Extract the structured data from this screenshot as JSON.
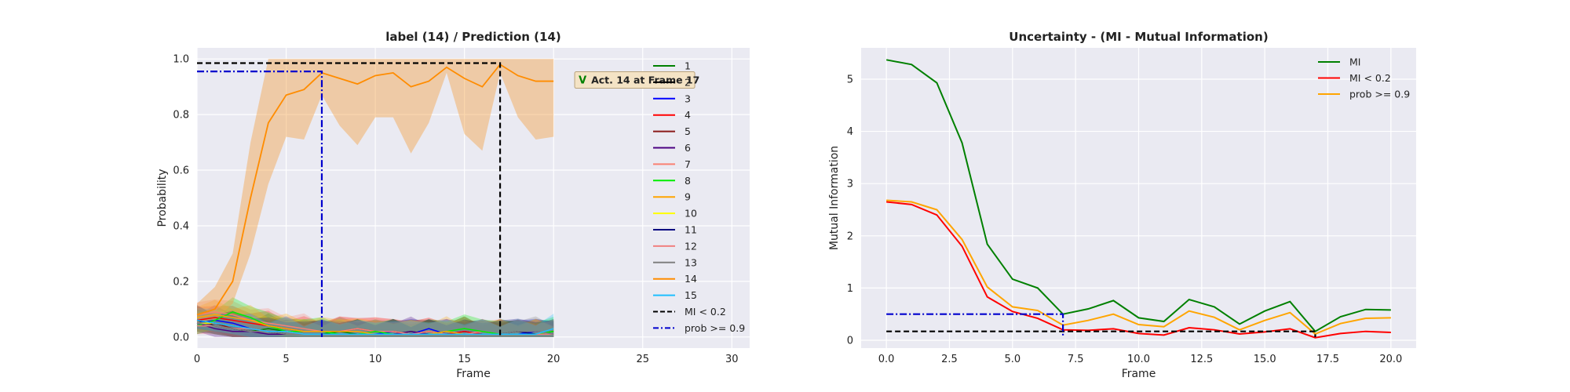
{
  "chart_data": [
    {
      "type": "line",
      "title": "label (14) / Prediction (14)",
      "xlabel": "Frame",
      "ylabel": "Probability",
      "xlim": [
        0,
        31
      ],
      "ylim": [
        -0.04,
        1.04
      ],
      "xticks": [
        0,
        5,
        10,
        15,
        20,
        25,
        30
      ],
      "yticks": [
        0.0,
        0.2,
        0.4,
        0.6,
        0.8,
        1.0
      ],
      "grid": true,
      "legend_position": "right",
      "annotation": {
        "symbol": "V",
        "text": "Act. 14 at Frame 17",
        "x": 17,
        "y": 0.92
      },
      "series": [
        {
          "name": "1",
          "color": "#008000",
          "values": [
            0.05,
            0.04,
            0.03,
            0.02,
            0.03,
            0.02,
            0.01,
            0.01,
            0.02,
            0.01,
            0.01,
            0.01,
            0.02,
            0.01,
            0.01,
            0.02,
            0.01,
            0.01,
            0.02,
            0.01,
            0.02
          ]
        },
        {
          "name": "2",
          "color": "#000000",
          "values": [
            0.06,
            0.04,
            0.03,
            0.02,
            0.02,
            0.01,
            0.01,
            0.01,
            0.01,
            0.01,
            0.01,
            0.01,
            0.01,
            0.01,
            0.01,
            0.01,
            0.01,
            0.01,
            0.01,
            0.01,
            0.01
          ]
        },
        {
          "name": "3",
          "color": "#0000ff",
          "values": [
            0.05,
            0.06,
            0.05,
            0.03,
            0.02,
            0.02,
            0.01,
            0.01,
            0.01,
            0.01,
            0.01,
            0.02,
            0.01,
            0.03,
            0.01,
            0.02,
            0.01,
            0.01,
            0.01,
            0.02,
            0.01
          ]
        },
        {
          "name": "4",
          "color": "#ff0000",
          "values": [
            0.06,
            0.07,
            0.06,
            0.05,
            0.04,
            0.03,
            0.02,
            0.02,
            0.02,
            0.03,
            0.02,
            0.02,
            0.01,
            0.02,
            0.01,
            0.02,
            0.01,
            0.01,
            0.01,
            0.01,
            0.01
          ]
        },
        {
          "name": "5",
          "color": "#8b1a1a",
          "values": [
            0.04,
            0.05,
            0.03,
            0.03,
            0.02,
            0.02,
            0.01,
            0.01,
            0.01,
            0.01,
            0.01,
            0.01,
            0.01,
            0.01,
            0.01,
            0.01,
            0.01,
            0.01,
            0.01,
            0.01,
            0.01
          ]
        },
        {
          "name": "6",
          "color": "#4b0082",
          "values": [
            0.05,
            0.03,
            0.02,
            0.02,
            0.01,
            0.01,
            0.01,
            0.01,
            0.01,
            0.01,
            0.01,
            0.01,
            0.02,
            0.01,
            0.01,
            0.01,
            0.01,
            0.01,
            0.01,
            0.01,
            0.01
          ]
        },
        {
          "name": "7",
          "color": "#fa8072",
          "values": [
            0.08,
            0.09,
            0.08,
            0.06,
            0.05,
            0.04,
            0.03,
            0.02,
            0.02,
            0.03,
            0.02,
            0.02,
            0.01,
            0.02,
            0.01,
            0.01,
            0.02,
            0.01,
            0.01,
            0.01,
            0.01
          ]
        },
        {
          "name": "8",
          "color": "#00ee00",
          "values": [
            0.04,
            0.06,
            0.09,
            0.07,
            0.04,
            0.02,
            0.02,
            0.02,
            0.01,
            0.01,
            0.02,
            0.01,
            0.01,
            0.01,
            0.02,
            0.03,
            0.02,
            0.01,
            0.01,
            0.01,
            0.02
          ]
        },
        {
          "name": "9",
          "color": "#ffa500",
          "values": [
            0.07,
            0.08,
            0.07,
            0.06,
            0.04,
            0.03,
            0.02,
            0.02,
            0.02,
            0.02,
            0.01,
            0.01,
            0.01,
            0.01,
            0.02,
            0.01,
            0.01,
            0.01,
            0.01,
            0.01,
            0.01
          ]
        },
        {
          "name": "10",
          "color": "#ffff00",
          "values": [
            0.05,
            0.05,
            0.04,
            0.03,
            0.02,
            0.02,
            0.01,
            0.01,
            0.01,
            0.01,
            0.01,
            0.01,
            0.01,
            0.01,
            0.01,
            0.01,
            0.01,
            0.01,
            0.01,
            0.01,
            0.01
          ]
        },
        {
          "name": "11",
          "color": "#000080",
          "values": [
            0.06,
            0.05,
            0.04,
            0.03,
            0.02,
            0.01,
            0.01,
            0.01,
            0.01,
            0.01,
            0.01,
            0.01,
            0.01,
            0.01,
            0.01,
            0.01,
            0.01,
            0.01,
            0.02,
            0.01,
            0.01
          ]
        },
        {
          "name": "12",
          "color": "#f08080",
          "values": [
            0.04,
            0.04,
            0.03,
            0.03,
            0.02,
            0.02,
            0.01,
            0.01,
            0.01,
            0.01,
            0.01,
            0.01,
            0.01,
            0.01,
            0.01,
            0.01,
            0.01,
            0.01,
            0.01,
            0.01,
            0.01
          ]
        },
        {
          "name": "13",
          "color": "#808080",
          "values": [
            0.05,
            0.04,
            0.03,
            0.02,
            0.02,
            0.01,
            0.01,
            0.01,
            0.01,
            0.01,
            0.01,
            0.01,
            0.01,
            0.01,
            0.01,
            0.01,
            0.01,
            0.01,
            0.02,
            0.02,
            0.01
          ]
        },
        {
          "name": "14",
          "color": "#ff8c00",
          "values": [
            0.08,
            0.1,
            0.2,
            0.5,
            0.77,
            0.87,
            0.89,
            0.95,
            0.93,
            0.91,
            0.94,
            0.95,
            0.9,
            0.92,
            0.97,
            0.93,
            0.9,
            0.98,
            0.94,
            0.92,
            0.92
          ]
        },
        {
          "name": "15",
          "color": "#1ebfff",
          "values": [
            0.06,
            0.05,
            0.04,
            0.03,
            0.02,
            0.02,
            0.01,
            0.01,
            0.01,
            0.01,
            0.01,
            0.01,
            0.01,
            0.01,
            0.01,
            0.01,
            0.01,
            0.01,
            0.01,
            0.01,
            0.03
          ]
        }
      ],
      "band_14": {
        "upper": [
          0.12,
          0.18,
          0.3,
          0.7,
          1.0,
          1.0,
          1.0,
          1.0,
          1.0,
          1.0,
          1.0,
          1.0,
          1.0,
          1.0,
          1.0,
          1.0,
          1.0,
          1.0,
          1.0,
          1.0,
          1.0
        ],
        "lower": [
          0.05,
          0.06,
          0.12,
          0.3,
          0.55,
          0.72,
          0.71,
          0.87,
          0.76,
          0.69,
          0.79,
          0.79,
          0.66,
          0.77,
          0.95,
          0.73,
          0.67,
          0.95,
          0.79,
          0.71,
          0.72
        ]
      },
      "reference_lines": [
        {
          "name": "MI < 0.2",
          "style": "dashed",
          "color": "#000000",
          "frame": 17,
          "level": 0.985
        },
        {
          "name": "prob >= 0.9",
          "style": "dashdot",
          "color": "#0000cd",
          "frame": 7,
          "level": 0.955
        }
      ]
    },
    {
      "type": "line",
      "title": "Uncertainty - (MI - Mutual Information)",
      "xlabel": "Frame",
      "ylabel": "Mutual Information",
      "xlim": [
        -1,
        21
      ],
      "ylim": [
        -0.15,
        5.6
      ],
      "xticks": [
        0.0,
        2.5,
        5.0,
        7.5,
        10.0,
        12.5,
        15.0,
        17.5,
        20.0
      ],
      "yticks": [
        0,
        1,
        2,
        3,
        4,
        5
      ],
      "grid": true,
      "legend_position": "top-right",
      "x": [
        0,
        1,
        2,
        3,
        4,
        5,
        6,
        7,
        8,
        9,
        10,
        11,
        12,
        13,
        14,
        15,
        16,
        17,
        18,
        19,
        20
      ],
      "series": [
        {
          "name": "MI",
          "color": "#008000",
          "values": [
            5.37,
            5.28,
            4.93,
            3.78,
            1.84,
            1.17,
            1.0,
            0.5,
            0.6,
            0.76,
            0.43,
            0.36,
            0.78,
            0.64,
            0.31,
            0.56,
            0.74,
            0.17,
            0.45,
            0.59,
            0.58
          ]
        },
        {
          "name": "MI < 0.2",
          "color": "#ff0000",
          "values": [
            2.65,
            2.6,
            2.4,
            1.8,
            0.83,
            0.55,
            0.42,
            0.2,
            0.19,
            0.22,
            0.13,
            0.1,
            0.24,
            0.2,
            0.12,
            0.16,
            0.22,
            0.05,
            0.13,
            0.17,
            0.15
          ]
        },
        {
          "name": "prob >= 0.9",
          "color": "#ffa500",
          "values": [
            2.68,
            2.65,
            2.5,
            1.93,
            1.02,
            0.64,
            0.57,
            0.29,
            0.38,
            0.5,
            0.3,
            0.26,
            0.56,
            0.44,
            0.2,
            0.38,
            0.53,
            0.12,
            0.32,
            0.42,
            0.43
          ]
        }
      ],
      "reference_lines": [
        {
          "style": "dashed",
          "color": "#000000",
          "frame": 17,
          "level": 0.17
        },
        {
          "style": "dashdot",
          "color": "#0000cd",
          "frame": 7,
          "level": 0.5
        }
      ]
    }
  ]
}
